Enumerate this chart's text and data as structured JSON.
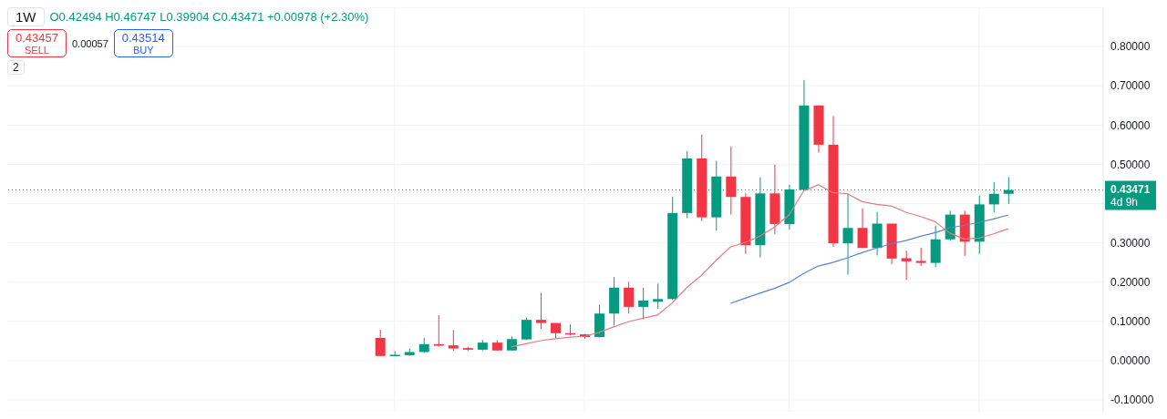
{
  "chart_data": {
    "type": "candlestick",
    "title": "1W",
    "annotations": [
      "O0.42494 H0.46747 L0.39904 C0.43471 +0.00978 (+2.30%)",
      "0.43457",
      "SELL",
      "0.00057",
      "0.43514",
      "BUY",
      "2",
      "4d 9h"
    ],
    "categories": [
      null,
      null,
      null,
      null,
      null,
      null,
      null,
      null,
      null,
      null,
      null,
      null,
      null,
      null,
      null,
      null,
      null,
      null,
      null,
      null,
      null,
      null,
      null,
      null,
      null,
      null,
      null,
      null,
      null,
      null,
      null,
      null,
      null,
      null,
      null,
      null,
      null,
      null,
      null,
      null,
      null,
      null,
      null,
      null,
      null,
      null,
      null,
      null,
      null,
      null,
      null,
      null,
      null,
      null,
      null,
      null,
      null,
      null,
      null,
      null,
      null,
      null,
      null,
      null,
      null,
      null,
      null,
      null,
      null,
      null,
      null,
      null,
      null,
      null,
      null
    ],
    "ohlc": [
      null,
      null,
      null,
      null,
      null,
      null,
      null,
      null,
      null,
      null,
      null,
      null,
      null,
      null,
      null,
      null,
      null,
      null,
      null,
      null,
      null,
      null,
      null,
      null,
      null,
      [
        0.058,
        0.079,
        0.012,
        0.012
      ],
      [
        0.013,
        0.024,
        0.012,
        0.015
      ],
      [
        0.014,
        0.03,
        0.012,
        0.022
      ],
      [
        0.022,
        0.058,
        0.02,
        0.042
      ],
      [
        0.042,
        0.116,
        0.036,
        0.038
      ],
      [
        0.039,
        0.078,
        0.025,
        0.031
      ],
      [
        0.032,
        0.035,
        0.025,
        0.028
      ],
      [
        0.028,
        0.053,
        0.026,
        0.046
      ],
      [
        0.046,
        0.053,
        0.026,
        0.026
      ],
      [
        0.026,
        0.062,
        0.026,
        0.055
      ],
      [
        0.054,
        0.11,
        0.054,
        0.104
      ],
      [
        0.104,
        0.172,
        0.081,
        0.096
      ],
      [
        0.096,
        0.096,
        0.056,
        0.07
      ],
      [
        0.07,
        0.092,
        0.064,
        0.067
      ],
      [
        0.067,
        0.068,
        0.056,
        0.06
      ],
      [
        0.06,
        0.143,
        0.059,
        0.12
      ],
      [
        0.12,
        0.213,
        0.09,
        0.186
      ],
      [
        0.186,
        0.201,
        0.12,
        0.137
      ],
      [
        0.137,
        0.186,
        0.105,
        0.153
      ],
      [
        0.15,
        0.196,
        0.132,
        0.157
      ],
      [
        0.157,
        0.417,
        0.155,
        0.376
      ],
      [
        0.376,
        0.534,
        0.363,
        0.515
      ],
      [
        0.515,
        0.576,
        0.355,
        0.365
      ],
      [
        0.365,
        0.509,
        0.331,
        0.469
      ],
      [
        0.469,
        0.546,
        0.372,
        0.417
      ],
      [
        0.417,
        0.426,
        0.272,
        0.294
      ],
      [
        0.294,
        0.467,
        0.263,
        0.426
      ],
      [
        0.426,
        0.499,
        0.322,
        0.348
      ],
      [
        0.348,
        0.448,
        0.334,
        0.436
      ],
      [
        0.435,
        0.715,
        0.435,
        0.65
      ],
      [
        0.65,
        0.65,
        0.53,
        0.55
      ],
      [
        0.55,
        0.623,
        0.29,
        0.299
      ],
      [
        0.299,
        0.426,
        0.219,
        0.338
      ],
      [
        0.338,
        0.388,
        0.287,
        0.287
      ],
      [
        0.287,
        0.379,
        0.268,
        0.349
      ],
      [
        0.349,
        0.349,
        0.246,
        0.26
      ],
      [
        0.261,
        0.28,
        0.206,
        0.253
      ],
      [
        0.254,
        0.288,
        0.241,
        0.249
      ],
      [
        0.249,
        0.344,
        0.238,
        0.309
      ],
      [
        0.309,
        0.382,
        0.305,
        0.372
      ],
      [
        0.372,
        0.382,
        0.267,
        0.303
      ],
      [
        0.303,
        0.421,
        0.272,
        0.398
      ],
      [
        0.398,
        0.455,
        0.378,
        0.425
      ],
      [
        0.42494,
        0.46747,
        0.39904,
        0.43471
      ],
      null,
      null,
      null,
      null,
      null,
      null
    ],
    "colors": [
      null,
      null,
      null,
      null,
      null,
      null,
      null,
      null,
      null,
      null,
      null,
      null,
      null,
      null,
      null,
      null,
      null,
      null,
      null,
      null,
      null,
      null,
      null,
      null,
      null,
      "#f23645",
      "#089981",
      "#089981",
      "#089981",
      "#f23645",
      "#f23645",
      "#f23645",
      "#089981",
      "#f23645",
      "#089981",
      "#089981",
      "#f23645",
      "#f23645",
      "#f23645",
      "#f23645",
      "#089981",
      "#089981",
      "#f23645",
      "#089981",
      "#089981",
      "#089981",
      "#089981",
      "#f23645",
      "#089981",
      "#f23645",
      "#f23645",
      "#089981",
      "#f23645",
      "#089981",
      "#089981",
      "#f23645",
      "#f23645",
      "#089981",
      "#f23645",
      "#089981",
      "#f23645",
      "#f23645",
      "#f23645",
      "#089981",
      "#089981",
      "#f23645",
      "#089981",
      "#089981",
      "#089981",
      null,
      null,
      null,
      null,
      null,
      null
    ],
    "series": [
      {
        "type": "line",
        "color": "#e57b83",
        "values": [
          null,
          null,
          null,
          null,
          null,
          null,
          null,
          null,
          null,
          null,
          null,
          null,
          null,
          null,
          null,
          null,
          null,
          null,
          null,
          null,
          null,
          null,
          null,
          null,
          null,
          null,
          null,
          null,
          null,
          null,
          null,
          null,
          null,
          null,
          0.035,
          0.043,
          0.051,
          0.056,
          0.06,
          0.062,
          0.072,
          0.086,
          0.099,
          0.108,
          0.116,
          0.147,
          0.186,
          0.217,
          0.255,
          0.29,
          0.301,
          0.317,
          0.34,
          0.371,
          0.432,
          0.448,
          0.428,
          0.425,
          0.405,
          0.398,
          0.394,
          0.378,
          0.367,
          0.354,
          0.325,
          0.31,
          0.312,
          0.323,
          0.336,
          null,
          null,
          null,
          null,
          null,
          null
        ]
      },
      {
        "type": "line",
        "color": "#5b82d1",
        "values": [
          null,
          null,
          null,
          null,
          null,
          null,
          null,
          null,
          null,
          null,
          null,
          null,
          null,
          null,
          null,
          null,
          null,
          null,
          null,
          null,
          null,
          null,
          null,
          null,
          null,
          null,
          null,
          null,
          null,
          null,
          null,
          null,
          null,
          null,
          null,
          null,
          null,
          null,
          null,
          null,
          null,
          null,
          null,
          null,
          null,
          null,
          null,
          null,
          null,
          0.146,
          0.159,
          0.172,
          0.184,
          0.199,
          0.222,
          0.241,
          0.25,
          0.262,
          0.275,
          0.287,
          0.298,
          0.306,
          0.317,
          0.326,
          0.338,
          0.345,
          0.352,
          0.361,
          0.371,
          null,
          null,
          null,
          null,
          null,
          null
        ]
      }
    ],
    "ylim": [
      -0.13,
      0.9
    ],
    "yticks": [
      {
        "value": -0.1,
        "label": "-0.10000"
      },
      {
        "value": 0,
        "label": "0.00000"
      },
      {
        "value": 0.1,
        "label": "0.10000"
      },
      {
        "value": 0.2,
        "label": "0.20000"
      },
      {
        "value": 0.3,
        "label": "0.30000"
      },
      {
        "value": 0.4,
        "label": null
      },
      {
        "value": 0.5,
        "label": "0.50000"
      },
      {
        "value": 0.6,
        "label": "0.60000"
      },
      {
        "value": 0.7,
        "label": "0.70000"
      },
      {
        "value": 0.8,
        "label": "0.80000"
      }
    ],
    "ref_lines": [
      {
        "axis": "y",
        "value": 0.43471,
        "label": "0.43471",
        "color": "#089981",
        "line_style": "dotted"
      }
    ],
    "grid": true,
    "legend": false,
    "tick_labels": "y"
  }
}
